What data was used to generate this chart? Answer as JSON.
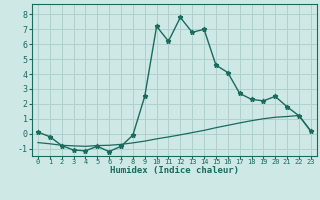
{
  "xlabel": "Humidex (Indice chaleur)",
  "background_color": "#cde8e5",
  "grid_color": "#afd0cd",
  "line_color": "#1a6b5e",
  "x_min": -0.5,
  "x_max": 23.5,
  "y_min": -1.5,
  "y_max": 8.7,
  "yticks": [
    -1,
    0,
    1,
    2,
    3,
    4,
    5,
    6,
    7,
    8
  ],
  "xticks": [
    0,
    1,
    2,
    3,
    4,
    5,
    6,
    7,
    8,
    9,
    10,
    11,
    12,
    13,
    14,
    15,
    16,
    17,
    18,
    19,
    20,
    21,
    22,
    23
  ],
  "line1_x": [
    0,
    1,
    2,
    3,
    4,
    5,
    6,
    7,
    8,
    9,
    10,
    11,
    12,
    13,
    14,
    15,
    16,
    17,
    18,
    19,
    20,
    21,
    22,
    23
  ],
  "line1_y": [
    0.1,
    -0.2,
    -0.8,
    -1.1,
    -1.15,
    -0.85,
    -1.2,
    -0.85,
    -0.1,
    2.5,
    7.2,
    6.2,
    7.8,
    6.8,
    7.0,
    4.6,
    4.1,
    2.7,
    2.3,
    2.2,
    2.5,
    1.8,
    1.2,
    0.15
  ],
  "line2_x": [
    0,
    1,
    2,
    3,
    4,
    5,
    6,
    7,
    8,
    9,
    10,
    11,
    12,
    13,
    14,
    15,
    16,
    17,
    18,
    19,
    20,
    21,
    22,
    23
  ],
  "line2_y": [
    -0.6,
    -0.68,
    -0.78,
    -0.82,
    -0.85,
    -0.8,
    -0.78,
    -0.72,
    -0.62,
    -0.5,
    -0.35,
    -0.22,
    -0.08,
    0.07,
    0.22,
    0.4,
    0.56,
    0.72,
    0.87,
    1.0,
    1.1,
    1.15,
    1.22,
    0.18
  ]
}
